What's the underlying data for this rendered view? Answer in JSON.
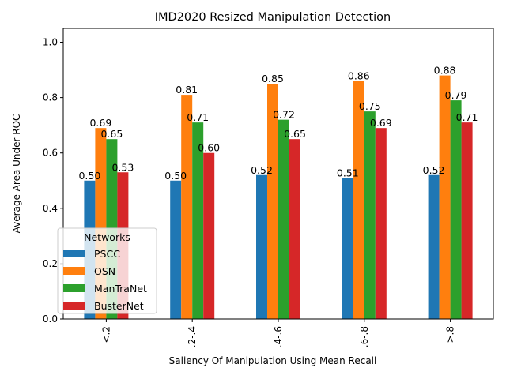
{
  "chart_data": {
    "type": "bar",
    "title": "IMD2020 Resized Manipulation Detection",
    "xlabel": "Saliency Of Manipulation Using Mean Recall",
    "ylabel": "Average Area Under ROC",
    "categories": [
      "<.2",
      ".2-.4",
      ".4-.6",
      ".6-.8",
      ">.8"
    ],
    "ylim": [
      0,
      1.05
    ],
    "yticks": [
      0.0,
      0.2,
      0.4,
      0.6,
      0.8,
      1.0
    ],
    "ytick_labels": [
      "0.0",
      "0.2",
      "0.4",
      "0.6",
      "0.8",
      "1.0"
    ],
    "grid": false,
    "legend": {
      "title": "Networks",
      "placement": "lower-left"
    },
    "series": [
      {
        "name": "PSCC",
        "color": "#1f77b4",
        "values": [
          0.5,
          0.5,
          0.52,
          0.51,
          0.52
        ],
        "labels": [
          "0.50",
          "0.50",
          "0.52",
          "0.51",
          "0.52"
        ]
      },
      {
        "name": "OSN",
        "color": "#ff7f0e",
        "values": [
          0.69,
          0.81,
          0.85,
          0.86,
          0.88
        ],
        "labels": [
          "0.69",
          "0.81",
          "0.85",
          "0.86",
          "0.88"
        ]
      },
      {
        "name": "ManTraNet",
        "color": "#2ca02c",
        "values": [
          0.65,
          0.71,
          0.72,
          0.75,
          0.79
        ],
        "labels": [
          "0.65",
          "0.71",
          "0.72",
          "0.75",
          "0.79"
        ]
      },
      {
        "name": "BusterNet",
        "color": "#d62728",
        "values": [
          0.53,
          0.6,
          0.65,
          0.69,
          0.71
        ],
        "labels": [
          "0.53",
          "0.60",
          "0.65",
          "0.69",
          "0.71"
        ]
      }
    ]
  }
}
